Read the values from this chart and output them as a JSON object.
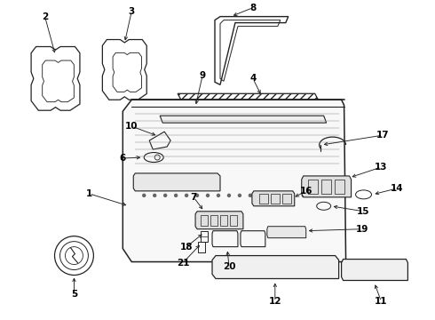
{
  "background_color": "#ffffff",
  "line_color": "#222222",
  "text_color": "#000000",
  "figsize": [
    4.9,
    3.6
  ],
  "dpi": 100
}
